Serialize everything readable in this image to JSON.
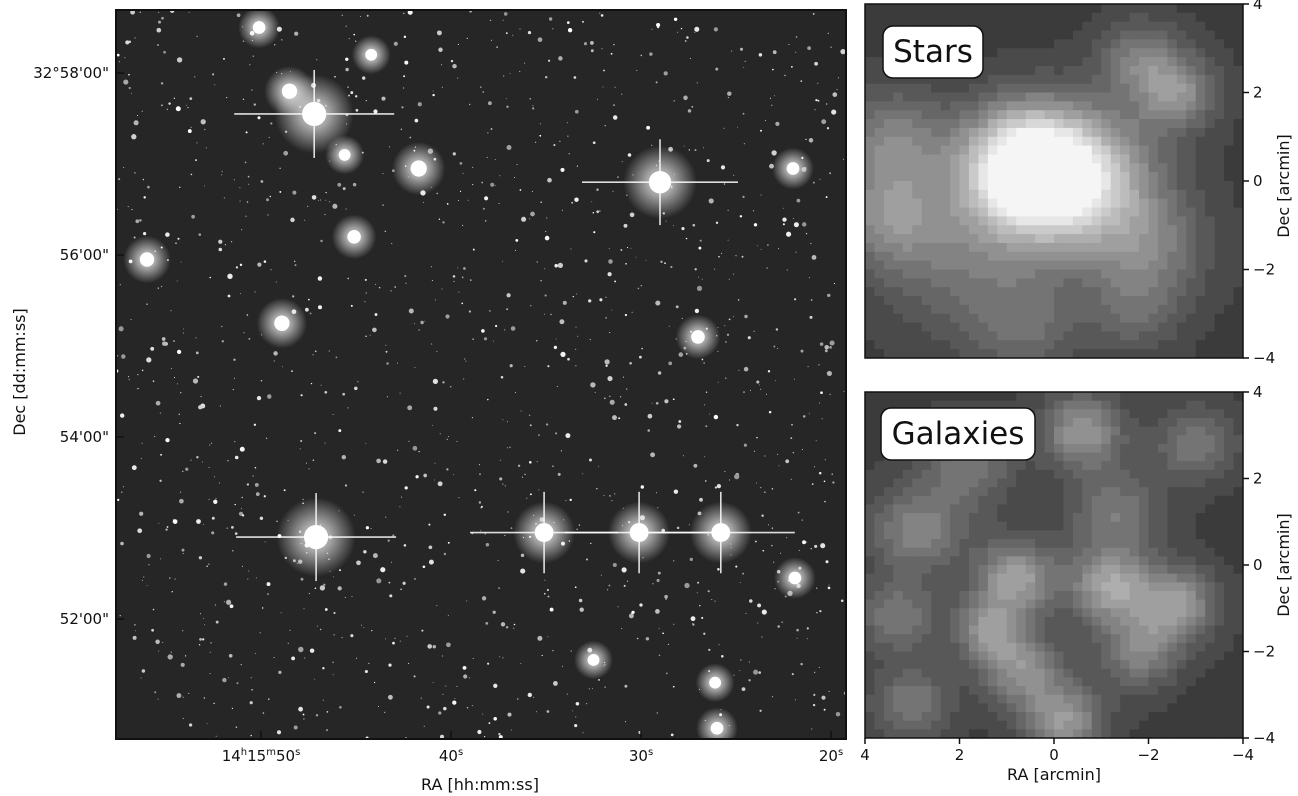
{
  "chart_data": [
    {
      "type": "image",
      "xlabel": "RA [hh:mm:ss]",
      "ylabel": "Dec [dd:mm:ss]",
      "x_ticks": [
        {
          "value": "14:15:50",
          "label_h": "14",
          "label_m": "15",
          "label_s": "50"
        },
        {
          "value": "14:15:40",
          "label_s": "40"
        },
        {
          "value": "14:15:30",
          "label_s": "30"
        },
        {
          "value": "14:15:20",
          "label_s": "20"
        }
      ],
      "y_ticks": [
        {
          "value": "32:58:00",
          "label": "32°58'00\""
        },
        {
          "value": "32:56:00",
          "label": "56'00\""
        },
        {
          "value": "32:54:00",
          "label": "54'00\""
        },
        {
          "value": "32:52:00",
          "label": "52'00\""
        }
      ],
      "bright_stars": [
        {
          "ra_s": 47.2,
          "dec_min": 57.55,
          "mag": 1.0
        },
        {
          "ra_s": 29.0,
          "dec_min": 56.8,
          "mag": 0.9
        },
        {
          "ra_s": 47.1,
          "dec_min": 52.9,
          "mag": 1.0
        },
        {
          "ra_s": 35.1,
          "dec_min": 52.95,
          "mag": 0.7
        },
        {
          "ra_s": 30.1,
          "dec_min": 52.95,
          "mag": 0.7
        },
        {
          "ra_s": 25.8,
          "dec_min": 52.95,
          "mag": 0.7
        },
        {
          "ra_s": 48.5,
          "dec_min": 57.8,
          "mag": 0.5
        },
        {
          "ra_s": 41.7,
          "dec_min": 56.95,
          "mag": 0.55
        },
        {
          "ra_s": 56.0,
          "dec_min": 55.95,
          "mag": 0.45
        },
        {
          "ra_s": 48.9,
          "dec_min": 55.25,
          "mag": 0.5
        },
        {
          "ra_s": 45.1,
          "dec_min": 56.2,
          "mag": 0.4
        },
        {
          "ra_s": 27.0,
          "dec_min": 55.1,
          "mag": 0.4
        },
        {
          "ra_s": 50.1,
          "dec_min": 58.5,
          "mag": 0.35
        },
        {
          "ra_s": 22.0,
          "dec_min": 56.95,
          "mag": 0.35
        },
        {
          "ra_s": 21.9,
          "dec_min": 52.45,
          "mag": 0.35
        },
        {
          "ra_s": 44.2,
          "dec_min": 58.2,
          "mag": 0.3
        },
        {
          "ra_s": 45.6,
          "dec_min": 57.1,
          "mag": 0.3
        },
        {
          "ra_s": 26.1,
          "dec_min": 51.3,
          "mag": 0.3
        },
        {
          "ra_s": 26.0,
          "dec_min": 50.8,
          "mag": 0.35
        },
        {
          "ra_s": 32.5,
          "dec_min": 51.55,
          "mag": 0.3
        }
      ]
    },
    {
      "type": "heatmap",
      "title": "Stars",
      "xlabel": "",
      "ylabel": "Dec [arcmin]",
      "xlim": [
        4,
        -4
      ],
      "ylim": [
        -4,
        4
      ],
      "x_ticks": [
        4,
        2,
        0,
        -2,
        -4
      ],
      "y_ticks": [
        4,
        2,
        0,
        -2,
        -4
      ],
      "peaks": [
        {
          "x": 0.6,
          "y": 0.3,
          "amp": 1.0,
          "sigma": 0.95
        },
        {
          "x": -0.3,
          "y": -0.2,
          "amp": 0.45,
          "sigma": 1.1
        },
        {
          "x": 3.4,
          "y": 0.9,
          "amp": 0.35,
          "sigma": 0.8
        },
        {
          "x": 3.5,
          "y": -0.8,
          "amp": 0.35,
          "sigma": 0.8
        },
        {
          "x": 2.0,
          "y": -1.8,
          "amp": 0.25,
          "sigma": 1.2
        },
        {
          "x": -2.6,
          "y": 2.0,
          "amp": 0.4,
          "sigma": 0.6
        },
        {
          "x": -1.8,
          "y": 2.8,
          "amp": 0.3,
          "sigma": 0.6
        },
        {
          "x": -2.0,
          "y": -1.5,
          "amp": 0.3,
          "sigma": 0.9
        },
        {
          "x": -1.0,
          "y": 0.3,
          "amp": 0.25,
          "sigma": 1.0
        },
        {
          "x": 0.6,
          "y": -3.3,
          "amp": 0.22,
          "sigma": 0.8
        },
        {
          "x": -1.7,
          "y": -3.0,
          "amp": 0.18,
          "sigma": 0.7
        }
      ]
    },
    {
      "type": "heatmap",
      "title": "Galaxies",
      "xlabel": "RA [arcmin]",
      "ylabel": "Dec [arcmin]",
      "xlim": [
        4,
        -4
      ],
      "ylim": [
        -4,
        4
      ],
      "x_ticks": [
        4,
        2,
        0,
        -2,
        -4
      ],
      "y_ticks": [
        4,
        2,
        0,
        -2,
        -4
      ],
      "peaks": [
        {
          "x": 0.8,
          "y": -0.3,
          "amp": 0.5,
          "sigma": 0.6
        },
        {
          "x": -1.2,
          "y": -0.5,
          "amp": 0.5,
          "sigma": 0.6
        },
        {
          "x": -2.6,
          "y": -0.9,
          "amp": 0.45,
          "sigma": 0.6
        },
        {
          "x": 1.4,
          "y": -1.5,
          "amp": 0.4,
          "sigma": 0.5
        },
        {
          "x": -0.6,
          "y": 3.1,
          "amp": 0.45,
          "sigma": 0.6
        },
        {
          "x": 0.7,
          "y": -2.4,
          "amp": 0.4,
          "sigma": 0.6
        },
        {
          "x": -0.2,
          "y": -3.6,
          "amp": 0.45,
          "sigma": 0.6
        },
        {
          "x": -1.8,
          "y": -2.0,
          "amp": 0.35,
          "sigma": 0.6
        },
        {
          "x": 2.9,
          "y": 0.8,
          "amp": 0.35,
          "sigma": 0.7
        },
        {
          "x": 3.3,
          "y": -1.2,
          "amp": 0.3,
          "sigma": 0.6
        },
        {
          "x": -3.0,
          "y": 2.8,
          "amp": 0.3,
          "sigma": 0.6
        },
        {
          "x": -1.3,
          "y": 1.2,
          "amp": 0.3,
          "sigma": 0.7
        },
        {
          "x": 1.8,
          "y": 2.3,
          "amp": 0.28,
          "sigma": 0.7
        },
        {
          "x": 3.0,
          "y": -3.2,
          "amp": 0.3,
          "sigma": 0.6
        }
      ]
    }
  ]
}
